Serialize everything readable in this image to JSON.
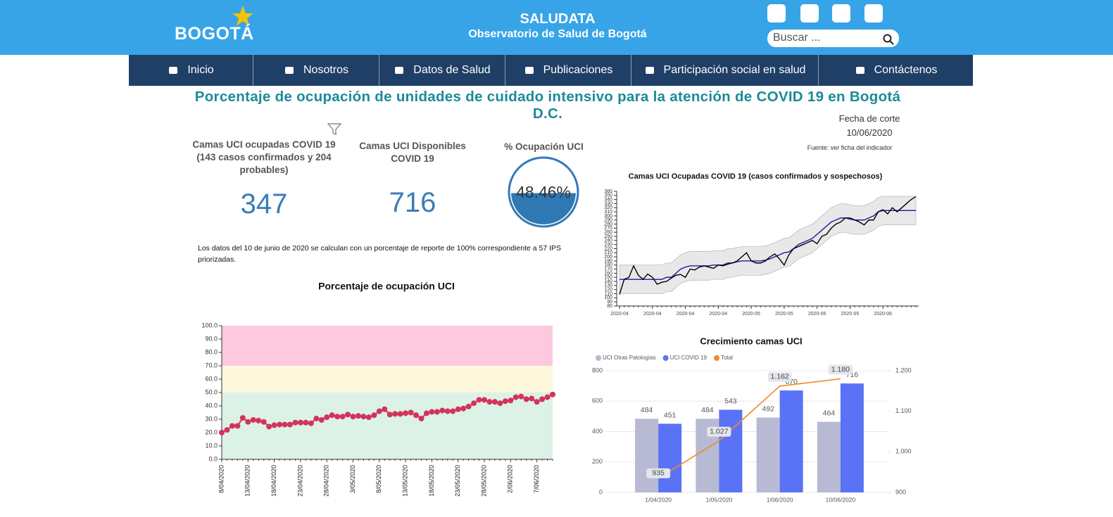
{
  "header": {
    "logo": "BOGOTÁ",
    "title": "SALUDATA",
    "subtitle": "Observatorio de Salud de Bogotá",
    "search_placeholder": "Buscar ..."
  },
  "nav": [
    "Inicio",
    "Nosotros",
    "Datos de Salud",
    "Publicaciones",
    "Participación social en salud",
    "Contáctenos"
  ],
  "page_title": "Porcentaje de ocupación de unidades de cuidado intensivo para la atención de COVID 19 en Bogotá D.C.",
  "cutoff": {
    "label": "Fecha de corte",
    "date": "10/06/2020",
    "source": "Fuente: ver ficha  del indicador"
  },
  "kpis": [
    {
      "label": "Camas UCI ocupadas COVID 19 (143 casos confirmados y 204 probables)",
      "value": 347
    },
    {
      "label": "Camas UCI Disponibles COVID 19",
      "value": 716
    },
    {
      "label": "% Ocupación UCI",
      "value": 48.46,
      "value_label": "48.46%"
    }
  ],
  "note": "Los datos del 10 de junio de 2020 se calculan con un porcentaje de reporte de 100% correspondiente a 57 IPS  priorizadas.",
  "chart_data": [
    {
      "type": "line",
      "title": "Porcentaje de ocupación UCI",
      "categories": [
        "8/04/2020",
        null,
        null,
        null,
        null,
        "13/04/2020",
        null,
        null,
        null,
        null,
        "18/04/2020",
        null,
        null,
        null,
        null,
        "23/04/2020",
        null,
        null,
        null,
        null,
        "28/04/2020",
        null,
        null,
        null,
        null,
        "3/05/2020",
        null,
        null,
        null,
        null,
        "8/05/2020",
        null,
        null,
        null,
        null,
        "13/05/2020",
        null,
        null,
        null,
        null,
        "18/05/2020",
        null,
        null,
        null,
        null,
        "23/05/2020",
        null,
        null,
        null,
        null,
        "28/05/2020",
        null,
        null,
        null,
        null,
        "2/06/2020",
        null,
        null,
        null,
        null,
        "7/06/2020",
        null,
        null,
        null
      ],
      "series": [
        {
          "color": "#d2335c",
          "markers": true,
          "values": [
            20,
            22,
            25,
            25,
            31,
            28,
            29.5,
            29,
            28,
            24.5,
            25.5,
            26,
            26,
            26,
            27.5,
            27.5,
            27.5,
            27,
            30.5,
            29.5,
            31.5,
            33,
            32,
            32,
            33.5,
            32,
            32.5,
            32,
            31.5,
            33,
            36,
            37.5,
            33.5,
            34,
            34,
            34.5,
            35,
            33,
            30.5,
            34.5,
            35.5,
            35.5,
            36.5,
            36,
            36,
            37.5,
            38,
            39.5,
            42,
            44.5,
            44.5,
            43,
            43,
            42,
            43.5,
            44,
            46.5,
            47,
            45,
            45.5,
            43,
            45,
            46.5,
            48.5
          ]
        }
      ],
      "bands": [
        {
          "from": 0,
          "to": 50,
          "color": "#dcf2e6"
        },
        {
          "from": 50,
          "to": 70,
          "color": "#fdf7dc"
        },
        {
          "from": 70,
          "to": 100,
          "color": "#fcc9de"
        }
      ],
      "ylim": [
        0,
        100
      ],
      "yticks": [
        {
          "value": 0,
          "label": "0.0"
        },
        {
          "value": 10,
          "label": "10.0"
        },
        {
          "value": 20,
          "label": "20.0"
        },
        {
          "value": 30,
          "label": "30.0"
        },
        {
          "value": 40,
          "label": "40.0"
        },
        {
          "value": 50,
          "label": "50.0"
        },
        {
          "value": 60,
          "label": "60.0"
        },
        {
          "value": 70,
          "label": "70.0"
        },
        {
          "value": 80,
          "label": "80.0"
        },
        {
          "value": 90,
          "label": "90.0"
        },
        {
          "value": 100,
          "label": "100.0"
        }
      ]
    },
    {
      "type": "line",
      "title": "Camas UCI Ocupadas COVID 19 (casos confirmados y sospechosos)",
      "categories": [
        "2020-04",
        null,
        null,
        null,
        null,
        null,
        null,
        "2020-04",
        null,
        null,
        null,
        null,
        null,
        null,
        "2020-04",
        null,
        null,
        null,
        null,
        null,
        null,
        "2020-04",
        null,
        null,
        null,
        null,
        null,
        null,
        "2020-05",
        null,
        null,
        null,
        null,
        null,
        null,
        "2020-05",
        null,
        null,
        null,
        null,
        null,
        null,
        "2020-05",
        null,
        null,
        null,
        null,
        null,
        null,
        "2020-05",
        null,
        null,
        null,
        null,
        null,
        null,
        "2020-06",
        null,
        null,
        null,
        null,
        null,
        null,
        null
      ],
      "band": {
        "color": "#e8e8e8",
        "upper": [
          180,
          180,
          180,
          180,
          180,
          180,
          180,
          180,
          180,
          180,
          185,
          185,
          195,
          205,
          210,
          213,
          213,
          213,
          213,
          213,
          215,
          215,
          215,
          220,
          220,
          223,
          225,
          225,
          225,
          225,
          225,
          227,
          230,
          235,
          240,
          245,
          247,
          255,
          265,
          270,
          275,
          280,
          290,
          300,
          310,
          320,
          325,
          330,
          330,
          327,
          325,
          325,
          325,
          330,
          335,
          345,
          348,
          348,
          348,
          348,
          348,
          348,
          348,
          348
        ],
        "lower": [
          110,
          110,
          110,
          110,
          110,
          110,
          110,
          110,
          110,
          110,
          115,
          115,
          125,
          135,
          140,
          143,
          143,
          143,
          143,
          143,
          145,
          145,
          145,
          150,
          150,
          153,
          155,
          155,
          155,
          155,
          155,
          157,
          160,
          165,
          170,
          175,
          177,
          185,
          195,
          200,
          205,
          210,
          220,
          230,
          240,
          250,
          255,
          260,
          260,
          257,
          255,
          255,
          255,
          260,
          265,
          275,
          278,
          278,
          278,
          278,
          278,
          278,
          278,
          278
        ]
      },
      "series": [
        {
          "color": "#1a1aa6",
          "values": [
            145,
            145,
            145,
            145,
            145,
            145,
            145,
            145,
            145,
            145,
            150,
            150,
            160,
            170,
            175,
            178,
            178,
            178,
            178,
            178,
            180,
            180,
            180,
            185,
            185,
            188,
            190,
            190,
            190,
            190,
            190,
            192,
            195,
            200,
            205,
            210,
            212,
            220,
            230,
            235,
            240,
            245,
            255,
            265,
            275,
            285,
            290,
            295,
            295,
            292,
            290,
            290,
            290,
            295,
            300,
            310,
            313,
            313,
            313,
            313,
            313,
            313,
            313,
            313
          ]
        },
        {
          "color": "#000000",
          "values": [
            108,
            145,
            150,
            178,
            155,
            145,
            158,
            150,
            133,
            138,
            140,
            148,
            155,
            157,
            150,
            170,
            168,
            175,
            178,
            175,
            172,
            180,
            178,
            182,
            185,
            190,
            200,
            210,
            190,
            185,
            185,
            190,
            200,
            207,
            195,
            180,
            205,
            220,
            225,
            230,
            235,
            240,
            232,
            250,
            255,
            270,
            280,
            285,
            295,
            295,
            290,
            285,
            278,
            290,
            290,
            310,
            315,
            305,
            320,
            310,
            320,
            330,
            340,
            347
          ]
        }
      ],
      "ylim": [
        80,
        360
      ],
      "yticks": [
        80,
        90,
        100,
        110,
        120,
        130,
        140,
        150,
        160,
        170,
        180,
        190,
        200,
        210,
        220,
        230,
        240,
        250,
        260,
        270,
        280,
        290,
        300,
        310,
        320,
        330,
        340,
        350,
        360
      ]
    },
    {
      "type": "bar",
      "title": "Crecimiento camas UCI",
      "legend": "top-left",
      "grid": true,
      "categories": [
        "1/04/2020",
        "1/05/2020",
        "1/06/2020",
        "10/06/2020"
      ],
      "series": [
        {
          "name": "UCI Otras Patologías",
          "color": "#b7bad2",
          "values": [
            484,
            484,
            492,
            464
          ]
        },
        {
          "name": "UCI COVID 19",
          "color": "#5a72f5",
          "values": [
            451,
            543,
            670,
            716
          ]
        },
        {
          "name": "Total",
          "color": "#f08a2c",
          "axis": "y2",
          "values": [
            935,
            1027,
            1162,
            1180
          ],
          "value_labels": [
            "935",
            "1.027",
            "1.162",
            "1.180"
          ]
        }
      ],
      "ylim": [
        0,
        800
      ],
      "yticks": [
        0,
        200,
        400,
        600,
        800
      ],
      "y2lim": [
        900,
        1200
      ],
      "y2ticks": [
        900,
        {
          "value": 1000,
          "label": "1.000"
        },
        {
          "value": 1100,
          "label": "1.100"
        },
        {
          "value": 1200,
          "label": "1.200"
        }
      ]
    }
  ]
}
